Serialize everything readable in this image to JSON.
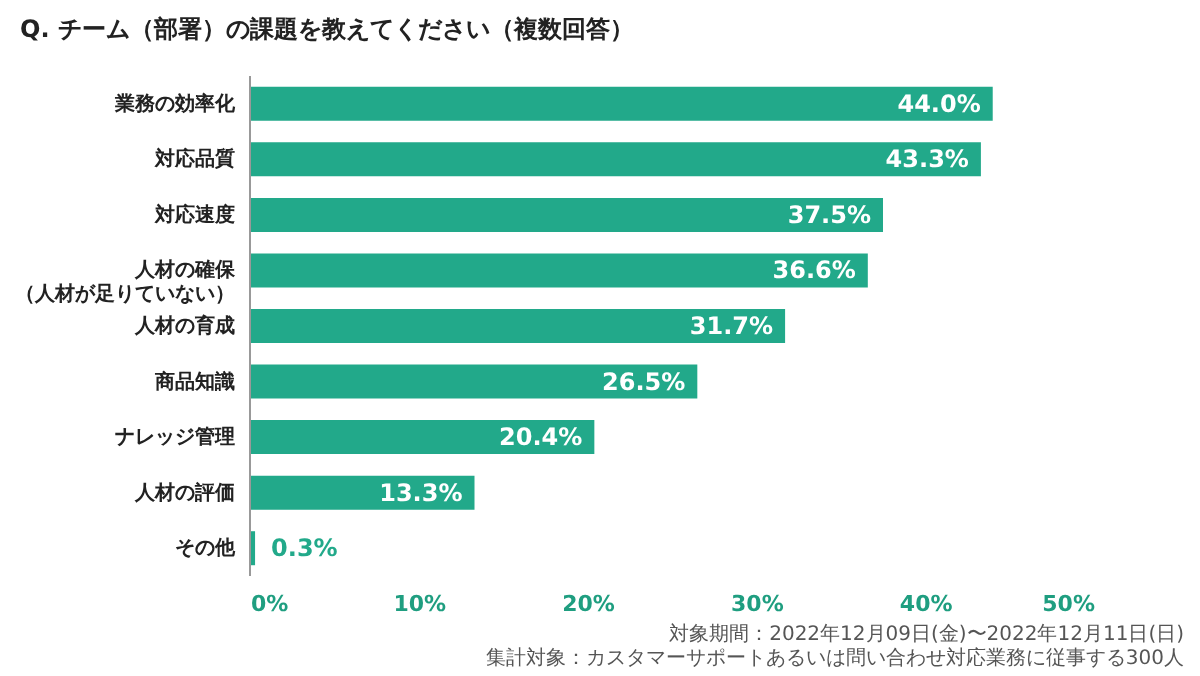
{
  "chart_data": {
    "type": "bar",
    "orientation": "horizontal",
    "title": "Q. チーム（部署）の課題を教えてください（複数回答）",
    "categories": [
      "業務の効率化",
      "対応品質",
      "対応速度",
      "人材の確保（人材が足りていない）",
      "人材の育成",
      "商品知識",
      "ナレッジ管理",
      "人材の評価",
      "その他"
    ],
    "values": [
      44.0,
      43.3,
      37.5,
      36.6,
      31.7,
      26.5,
      20.4,
      13.3,
      0.3
    ],
    "value_labels": [
      "44.0%",
      "43.3%",
      "37.5%",
      "36.6%",
      "31.7%",
      "26.5%",
      "20.4%",
      "13.3%",
      "0.3%"
    ],
    "color": "#22a98a",
    "xlim": [
      0,
      50
    ],
    "xticks": [
      {
        "value": 0,
        "label": "0%"
      },
      {
        "value": 10,
        "label": "10%"
      },
      {
        "value": 20,
        "label": "20%"
      },
      {
        "value": 30,
        "label": "30%"
      },
      {
        "value": 40,
        "label": "40%"
      },
      {
        "value": 50,
        "label": "50%"
      }
    ],
    "grid": false,
    "annotations": [
      "対象期間：2022年12月09日(金)〜2022年12月11日(日)",
      "集計対象：カスタマーサポートあるいは問い合わせ対応業務に従事する300人"
    ]
  }
}
